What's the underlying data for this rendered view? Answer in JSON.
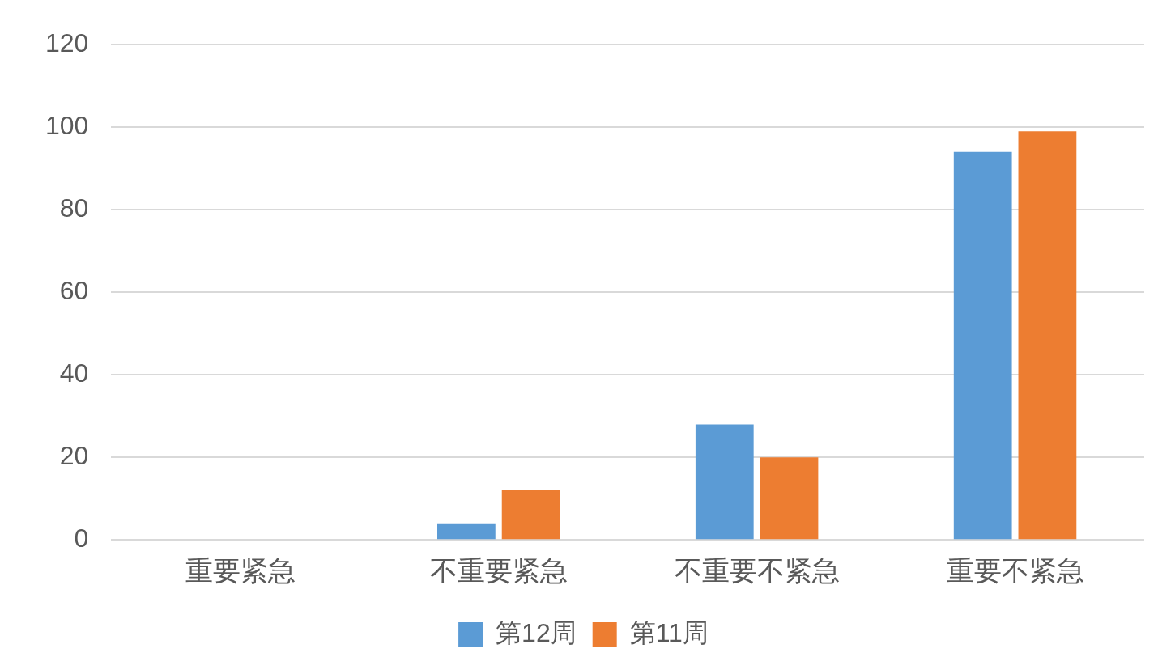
{
  "chart_data": {
    "type": "bar",
    "categories": [
      "重要紧急",
      "不重要紧急",
      "不重要不紧急",
      "重要不紧急"
    ],
    "series": [
      {
        "name": "第12周",
        "color": "#5b9bd5",
        "values": [
          0,
          4,
          28,
          94
        ]
      },
      {
        "name": "第11周",
        "color": "#ed7d31",
        "values": [
          0,
          12,
          20,
          99
        ]
      }
    ],
    "ylim": [
      0,
      120
    ],
    "yticks": [
      0,
      20,
      40,
      60,
      80,
      100,
      120
    ],
    "grid": "y",
    "legend": "bottom"
  }
}
